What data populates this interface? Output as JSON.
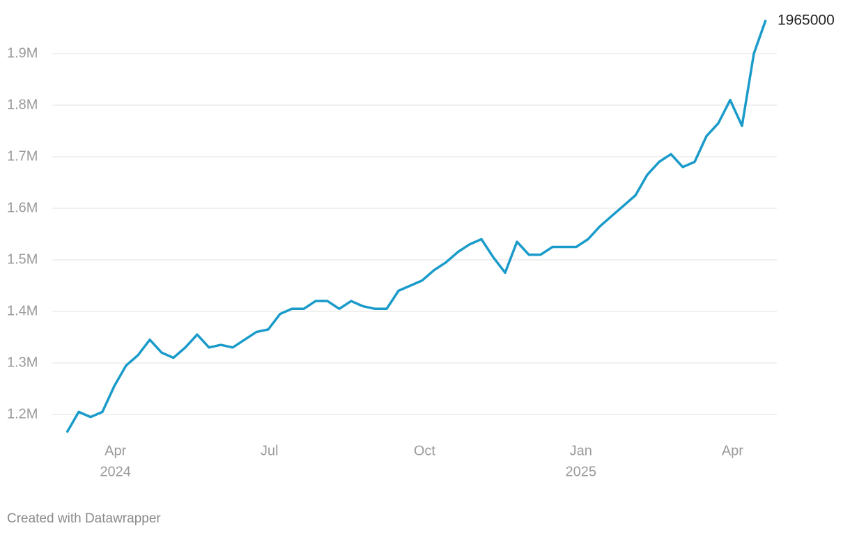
{
  "chart_data": {
    "type": "line",
    "series": [
      {
        "color": "#1a9bc9",
        "values": [
          1165000,
          1205000,
          1195000,
          1205000,
          1255000,
          1295000,
          1315000,
          1345000,
          1320000,
          1310000,
          1330000,
          1355000,
          1330000,
          1335000,
          1330000,
          1345000,
          1360000,
          1365000,
          1395000,
          1405000,
          1405000,
          1420000,
          1420000,
          1405000,
          1420000,
          1410000,
          1405000,
          1405000,
          1440000,
          1450000,
          1460000,
          1480000,
          1495000,
          1515000,
          1530000,
          1540000,
          1505000,
          1475000,
          1535000,
          1510000,
          1510000,
          1525000,
          1525000,
          1525000,
          1540000,
          1565000,
          1585000,
          1605000,
          1625000,
          1665000,
          1690000,
          1705000,
          1680000,
          1690000,
          1740000,
          1765000,
          1810000,
          1760000,
          1900000,
          1965000
        ]
      }
    ],
    "end_label_index": 59,
    "xlim": [
      0,
      59
    ],
    "xticks": [
      {
        "value": 4.1,
        "label": "Apr",
        "sublabel": "2024"
      },
      {
        "value": 17.1,
        "label": "Jul"
      },
      {
        "value": 30.2,
        "label": "Oct"
      },
      {
        "value": 43.4,
        "label": "Jan",
        "sublabel": "2025"
      },
      {
        "value": 56.2,
        "label": "Apr"
      }
    ],
    "ylim": [
      1163500,
      1977000
    ],
    "yticks": [
      {
        "value": 1200000,
        "label": "1.2M"
      },
      {
        "value": 1300000,
        "label": "1.3M"
      },
      {
        "value": 1400000,
        "label": "1.4M"
      },
      {
        "value": 1500000,
        "label": "1.5M"
      },
      {
        "value": 1600000,
        "label": "1.6M"
      },
      {
        "value": 1700000,
        "label": "1.7M"
      },
      {
        "value": 1800000,
        "label": "1.8M"
      },
      {
        "value": 1900000,
        "label": "1.9M"
      }
    ],
    "grid": true,
    "footer": "Created with Datawrapper"
  }
}
